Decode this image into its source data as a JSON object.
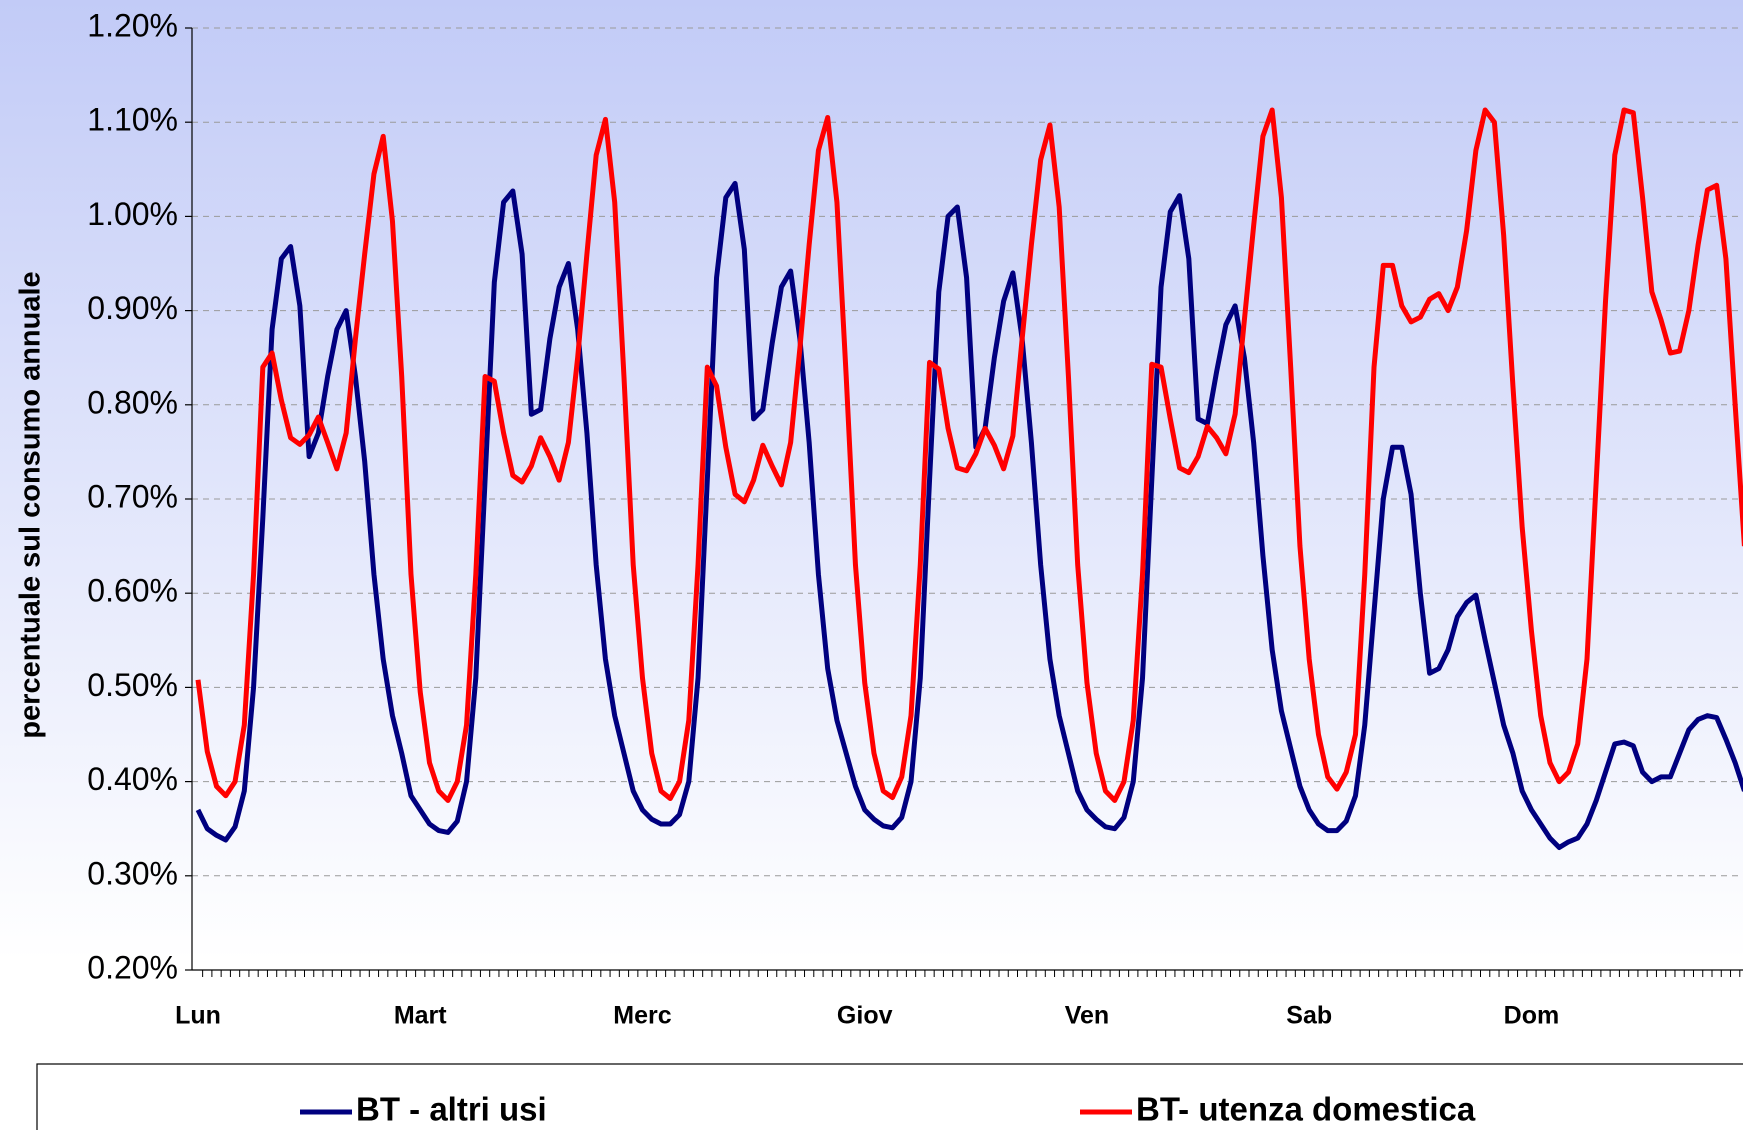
{
  "chart_data": {
    "type": "line",
    "y_label": "percentuale sul consumo annuale",
    "categories": [
      "Lun",
      null,
      null,
      null,
      null,
      null,
      null,
      null,
      null,
      null,
      null,
      null,
      null,
      null,
      null,
      null,
      null,
      null,
      null,
      null,
      null,
      null,
      null,
      null,
      "Mart",
      null,
      null,
      null,
      null,
      null,
      null,
      null,
      null,
      null,
      null,
      null,
      null,
      null,
      null,
      null,
      null,
      null,
      null,
      null,
      null,
      null,
      null,
      null,
      "Merc",
      null,
      null,
      null,
      null,
      null,
      null,
      null,
      null,
      null,
      null,
      null,
      null,
      null,
      null,
      null,
      null,
      null,
      null,
      null,
      null,
      null,
      null,
      null,
      "Giov",
      null,
      null,
      null,
      null,
      null,
      null,
      null,
      null,
      null,
      null,
      null,
      null,
      null,
      null,
      null,
      null,
      null,
      null,
      null,
      null,
      null,
      null,
      null,
      "Ven",
      null,
      null,
      null,
      null,
      null,
      null,
      null,
      null,
      null,
      null,
      null,
      null,
      null,
      null,
      null,
      null,
      null,
      null,
      null,
      null,
      null,
      null,
      null,
      "Sab",
      null,
      null,
      null,
      null,
      null,
      null,
      null,
      null,
      null,
      null,
      null,
      null,
      null,
      null,
      null,
      null,
      null,
      null,
      null,
      null,
      null,
      null,
      null,
      "Dom",
      null,
      null,
      null,
      null,
      null,
      null,
      null,
      null,
      null,
      null,
      null,
      null,
      null,
      null,
      null,
      null,
      null,
      null,
      null,
      null,
      null,
      null,
      null
    ],
    "series": [
      {
        "name": "BT - altri usi",
        "color": "#00007f",
        "values": [
          0.37,
          0.35,
          0.343,
          0.338,
          0.352,
          0.39,
          0.5,
          0.68,
          0.88,
          0.955,
          0.968,
          0.905,
          0.745,
          0.77,
          0.83,
          0.88,
          0.9,
          0.83,
          0.74,
          0.62,
          0.53,
          0.47,
          0.43,
          0.385,
          0.37,
          0.355,
          0.348,
          0.346,
          0.358,
          0.4,
          0.51,
          0.72,
          0.93,
          1.015,
          1.027,
          0.96,
          0.79,
          0.795,
          0.87,
          0.925,
          0.95,
          0.88,
          0.77,
          0.63,
          0.53,
          0.47,
          0.43,
          0.39,
          0.37,
          0.36,
          0.355,
          0.355,
          0.365,
          0.4,
          0.51,
          0.72,
          0.935,
          1.02,
          1.035,
          0.965,
          0.785,
          0.795,
          0.865,
          0.925,
          0.942,
          0.87,
          0.76,
          0.62,
          0.52,
          0.465,
          0.43,
          0.395,
          0.37,
          0.36,
          0.353,
          0.351,
          0.362,
          0.4,
          0.51,
          0.72,
          0.92,
          1.0,
          1.01,
          0.935,
          0.755,
          0.775,
          0.85,
          0.91,
          0.94,
          0.87,
          0.76,
          0.63,
          0.53,
          0.47,
          0.43,
          0.39,
          0.37,
          0.36,
          0.352,
          0.35,
          0.362,
          0.4,
          0.51,
          0.72,
          0.925,
          1.005,
          1.022,
          0.955,
          0.785,
          0.78,
          0.835,
          0.885,
          0.905,
          0.85,
          0.76,
          0.64,
          0.54,
          0.475,
          0.435,
          0.395,
          0.37,
          0.355,
          0.348,
          0.348,
          0.358,
          0.385,
          0.46,
          0.58,
          0.7,
          0.755,
          0.755,
          0.705,
          0.6,
          0.515,
          0.52,
          0.54,
          0.575,
          0.59,
          0.598,
          0.55,
          0.505,
          0.46,
          0.43,
          0.39,
          0.37,
          0.355,
          0.34,
          0.33,
          0.336,
          0.34,
          0.355,
          0.38,
          0.41,
          0.44,
          0.442,
          0.438,
          0.41,
          0.4,
          0.405,
          0.405,
          0.43,
          0.455,
          0.466,
          0.47,
          0.468,
          0.445,
          0.42,
          0.39
        ]
      },
      {
        "name": "BT- utenza domestica",
        "color": "#ff0000",
        "values": [
          0.508,
          0.432,
          0.395,
          0.385,
          0.4,
          0.46,
          0.62,
          0.84,
          0.855,
          0.805,
          0.765,
          0.758,
          0.768,
          0.787,
          0.76,
          0.732,
          0.77,
          0.87,
          0.96,
          1.045,
          1.085,
          0.995,
          0.83,
          0.62,
          0.495,
          0.42,
          0.39,
          0.38,
          0.4,
          0.46,
          0.62,
          0.83,
          0.825,
          0.77,
          0.725,
          0.718,
          0.735,
          0.765,
          0.745,
          0.72,
          0.76,
          0.85,
          0.96,
          1.065,
          1.103,
          1.015,
          0.83,
          0.63,
          0.51,
          0.43,
          0.39,
          0.382,
          0.4,
          0.465,
          0.63,
          0.84,
          0.82,
          0.755,
          0.705,
          0.697,
          0.72,
          0.757,
          0.735,
          0.715,
          0.76,
          0.86,
          0.97,
          1.07,
          1.105,
          1.015,
          0.83,
          0.63,
          0.505,
          0.43,
          0.39,
          0.383,
          0.405,
          0.47,
          0.63,
          0.845,
          0.838,
          0.775,
          0.733,
          0.73,
          0.748,
          0.775,
          0.757,
          0.732,
          0.767,
          0.87,
          0.97,
          1.06,
          1.097,
          1.01,
          0.83,
          0.63,
          0.505,
          0.43,
          0.39,
          0.38,
          0.4,
          0.465,
          0.62,
          0.843,
          0.84,
          0.785,
          0.733,
          0.728,
          0.745,
          0.777,
          0.765,
          0.748,
          0.79,
          0.89,
          0.99,
          1.085,
          1.113,
          1.02,
          0.84,
          0.65,
          0.53,
          0.45,
          0.405,
          0.392,
          0.41,
          0.45,
          0.62,
          0.84,
          0.948,
          0.948,
          0.905,
          0.888,
          0.893,
          0.912,
          0.918,
          0.9,
          0.925,
          0.985,
          1.07,
          1.113,
          1.1,
          0.98,
          0.82,
          0.67,
          0.56,
          0.47,
          0.42,
          0.4,
          0.41,
          0.44,
          0.53,
          0.72,
          0.91,
          1.065,
          1.113,
          1.11,
          1.02,
          0.92,
          0.89,
          0.855,
          0.857,
          0.9,
          0.97,
          1.028,
          1.033,
          0.955,
          0.8,
          0.65
        ]
      }
    ],
    "ylim": [
      0.2,
      1.2
    ],
    "yticks": [
      {
        "value": 0.2,
        "label": "0.20%"
      },
      {
        "value": 0.3,
        "label": "0.30%"
      },
      {
        "value": 0.4,
        "label": "0.40%"
      },
      {
        "value": 0.5,
        "label": "0.50%"
      },
      {
        "value": 0.6,
        "label": "0.60%"
      },
      {
        "value": 0.7,
        "label": "0.70%"
      },
      {
        "value": 0.8,
        "label": "0.80%"
      },
      {
        "value": 0.9,
        "label": "0.90%"
      },
      {
        "value": 1.0,
        "label": "1.00%"
      },
      {
        "value": 1.1,
        "label": "1.10%"
      },
      {
        "value": 1.2,
        "label": "1.20%"
      }
    ],
    "grid": true,
    "legend": "bottom"
  }
}
